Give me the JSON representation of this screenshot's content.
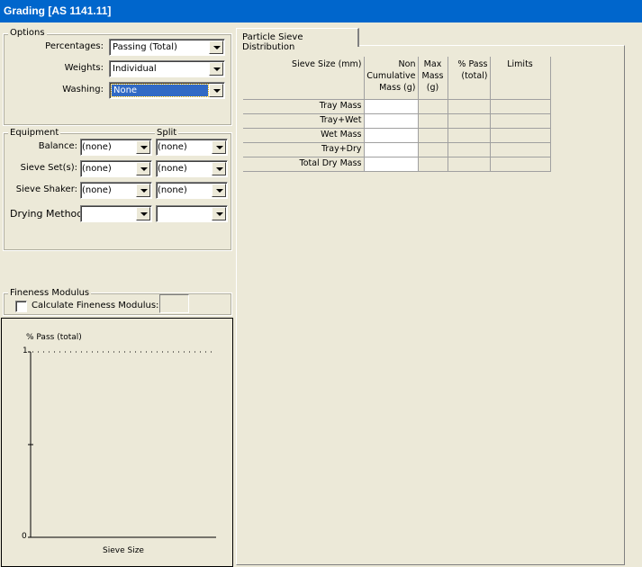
{
  "window": {
    "title": "Grading [AS 1141.11]"
  },
  "options": {
    "legend": "Options",
    "percentages": {
      "label": "Percentages:",
      "value": "Passing (Total)"
    },
    "weights": {
      "label": "Weights:",
      "value": "Individual"
    },
    "washing": {
      "label": "Washing:",
      "value": "None"
    }
  },
  "equipment": {
    "legend": "Equipment",
    "split_legend": "Split",
    "rows": [
      {
        "label": "Balance:",
        "value": "(none)",
        "split": "(none)"
      },
      {
        "label": "Sieve Set(s):",
        "value": "(none)",
        "split": "(none)"
      },
      {
        "label": "Sieve Shaker:",
        "value": "(none)",
        "split": "(none)"
      },
      {
        "label": "Drying Method:",
        "value": "",
        "split": ""
      }
    ]
  },
  "fineness": {
    "legend": "Fineness Modulus",
    "checkbox_label": "Calculate Fineness Modulus:",
    "checked": false,
    "value": ""
  },
  "chart": {
    "ylabel": "% Pass (total)",
    "xlabel": "Sieve Size",
    "ytick_top": "1",
    "ytick_bottom": "0"
  },
  "chart_data": {
    "type": "line",
    "ylabel": "% Pass (total)",
    "xlabel": "Sieve Size",
    "ylim": [
      0,
      1
    ],
    "yticks": [
      "0",
      "1"
    ],
    "series": []
  },
  "tabs": [
    {
      "label": "Particle Sieve Distribution",
      "active": true
    }
  ],
  "table": {
    "headers": [
      "Sieve Size (mm)",
      "Non Cumulative Mass (g)",
      "Max Mass (g)",
      "% Pass (total)",
      "Limits"
    ],
    "rows": [
      [
        "Tray Mass",
        "",
        "",
        "",
        ""
      ],
      [
        "Tray+Wet",
        "",
        "",
        "",
        ""
      ],
      [
        "Wet Mass",
        "",
        "",
        "",
        ""
      ],
      [
        "Tray+Dry",
        "",
        "",
        "",
        ""
      ],
      [
        "Total Dry Mass",
        "",
        "",
        "",
        ""
      ]
    ]
  }
}
